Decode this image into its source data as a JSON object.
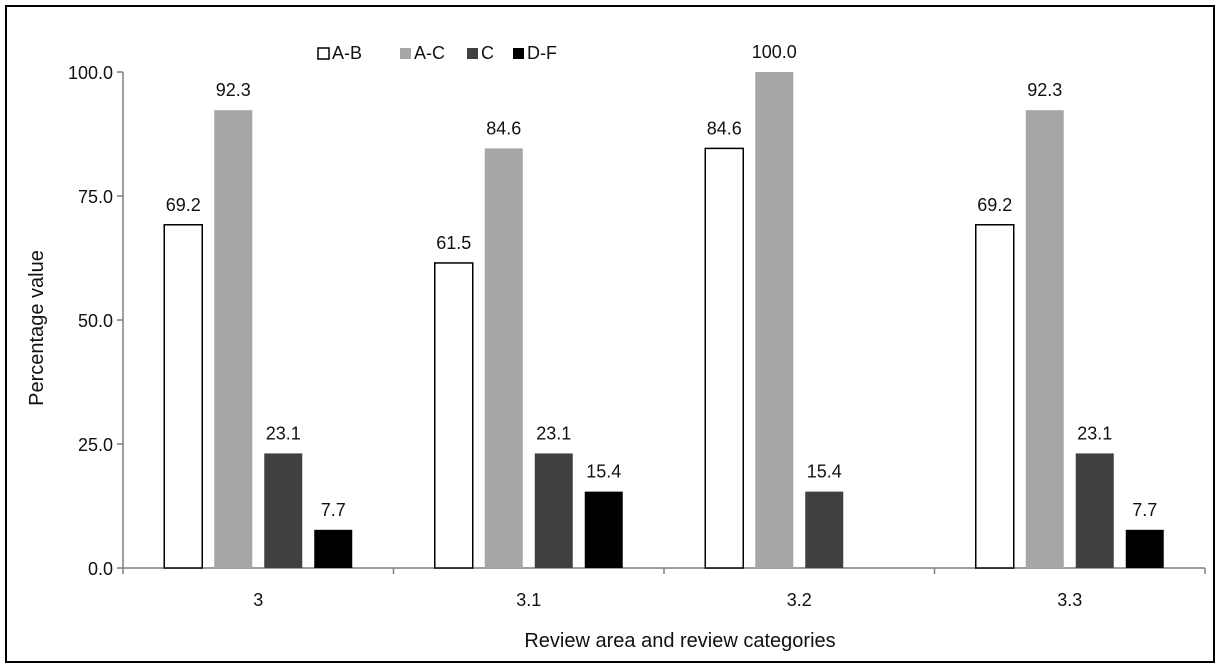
{
  "chart_data": {
    "type": "bar",
    "title": "",
    "xlabel": "Review area and review categories",
    "ylabel": "Percentage value",
    "categories": [
      "3",
      "3.1",
      "3.2",
      "3.3"
    ],
    "ylim": [
      0,
      100
    ],
    "yticks": [
      "0.0",
      "25.0",
      "50.0",
      "75.0",
      "100.0"
    ],
    "grid": false,
    "legend_position": "top-center",
    "series": [
      {
        "name": "A-B",
        "color": "#ffffff",
        "values": [
          69.2,
          61.5,
          84.6,
          69.2
        ],
        "labels": [
          "69.2",
          "61.5",
          "84.6",
          "69.2"
        ]
      },
      {
        "name": "A-C",
        "color": "#a6a6a6",
        "values": [
          92.3,
          84.6,
          100.0,
          92.3
        ],
        "labels": [
          "92.3",
          "84.6",
          "100.0",
          "92.3"
        ]
      },
      {
        "name": "C",
        "color": "#404040",
        "values": [
          23.1,
          23.1,
          15.4,
          23.1
        ],
        "labels": [
          "23.1",
          "23.1",
          "15.4",
          "23.1"
        ]
      },
      {
        "name": "D-F",
        "color": "#000000",
        "values": [
          7.7,
          15.4,
          null,
          7.7
        ],
        "labels": [
          "7.7",
          "15.4",
          null,
          "7.7"
        ]
      }
    ]
  }
}
